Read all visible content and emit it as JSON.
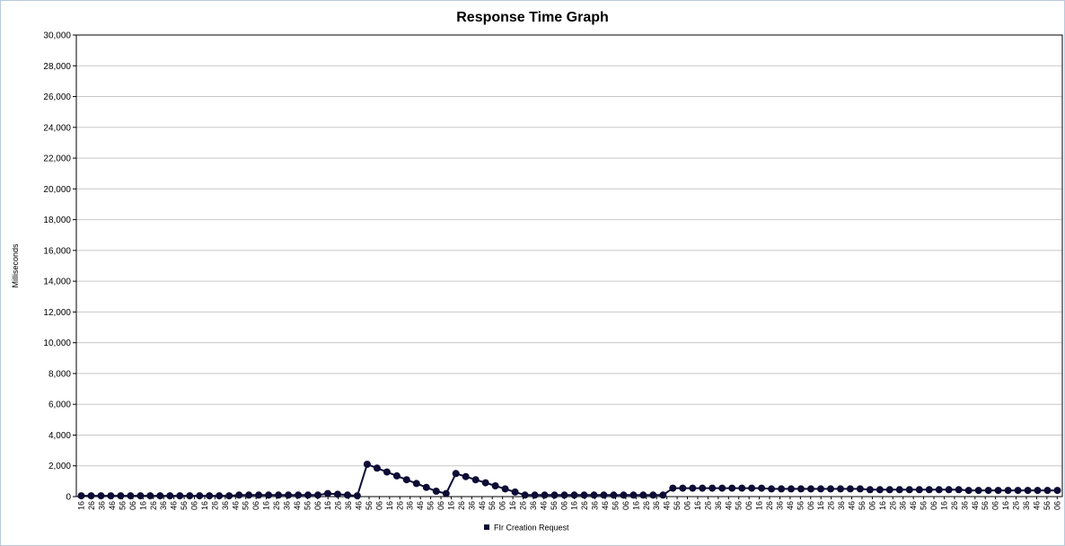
{
  "chart_data": {
    "type": "line",
    "title": "Response Time Graph",
    "ylabel": "Milliseconds",
    "xlabel": "",
    "ylim": [
      0,
      30000
    ],
    "y_ticks": [
      "0",
      "2,000",
      "4,000",
      "6,000",
      "8,000",
      "10,000",
      "12,000",
      "14,000",
      "16,000",
      "18,000",
      "20,000",
      "22,000",
      "24,000",
      "26,000",
      "28,000",
      "30,000"
    ],
    "x_tick_labels": [
      "16",
      "26",
      "36",
      "46",
      "56",
      "06",
      "16",
      "26",
      "36",
      "46",
      "56",
      "06",
      "16",
      "26",
      "36",
      "46",
      "56",
      "06",
      "16",
      "26",
      "36",
      "46",
      "56",
      "06",
      "16",
      "26",
      "36",
      "46",
      "56",
      "06",
      "16",
      "26",
      "36",
      "46",
      "56",
      "06",
      "16",
      "26",
      "36",
      "46",
      "56",
      "06",
      "16",
      "26",
      "36",
      "46",
      "56",
      "06",
      "16",
      "26",
      "36",
      "46",
      "56",
      "06",
      "16",
      "26",
      "36",
      "46",
      "56",
      "06",
      "16",
      "26",
      "36",
      "46",
      "56",
      "06",
      "16",
      "26",
      "36",
      "46",
      "56",
      "06",
      "16",
      "26",
      "36",
      "46",
      "56",
      "06",
      "16",
      "26",
      "36",
      "46",
      "56",
      "06",
      "16",
      "26",
      "36",
      "46",
      "56",
      "06",
      "16",
      "26",
      "36",
      "46",
      "56",
      "06"
    ],
    "grid": true,
    "legend_position": "bottom",
    "colors": {
      "series": "#0c0c35",
      "grid": "#c8c8c8",
      "axis": "#000000"
    },
    "series": [
      {
        "name": "FIr Creation Request",
        "x": [
          0,
          1,
          2,
          3,
          4,
          5,
          6,
          7,
          8,
          9,
          10,
          11,
          12,
          13,
          14,
          15,
          16,
          17,
          18,
          19,
          20,
          21,
          22,
          23,
          24,
          25,
          26,
          27,
          28,
          29,
          30,
          31,
          32,
          33,
          34,
          35,
          36,
          37,
          38,
          39,
          40,
          41,
          42,
          43,
          44,
          45,
          46,
          47,
          48,
          49,
          50,
          51,
          52,
          53,
          54,
          55,
          56,
          57,
          58,
          59,
          60,
          61,
          62,
          63,
          64,
          65,
          66,
          67,
          68,
          69,
          70,
          71,
          72,
          73,
          74,
          75,
          76,
          77,
          78,
          79,
          80,
          81,
          82,
          83,
          84,
          85,
          86,
          87,
          88,
          89,
          90,
          91,
          92,
          93,
          94,
          95,
          96,
          97,
          98,
          99
        ],
        "values": [
          50,
          50,
          50,
          50,
          50,
          50,
          50,
          50,
          50,
          50,
          50,
          50,
          50,
          50,
          50,
          50,
          100,
          100,
          100,
          100,
          100,
          100,
          100,
          100,
          100,
          200,
          150,
          100,
          50,
          2100,
          1850,
          1600,
          1350,
          1100,
          850,
          600,
          350,
          200,
          1500,
          1300,
          1100,
          900,
          700,
          500,
          300,
          100,
          100,
          100,
          100,
          100,
          100,
          100,
          100,
          100,
          100,
          100,
          100,
          100,
          100,
          100,
          550,
          550,
          550,
          550,
          550,
          550,
          550,
          550,
          550,
          550,
          500,
          500,
          500,
          500,
          500,
          500,
          500,
          500,
          500,
          500,
          450,
          450,
          450,
          450,
          450,
          450,
          450,
          450,
          450,
          450,
          400,
          400,
          400,
          400,
          400,
          400,
          400,
          400,
          400,
          400
        ]
      }
    ]
  },
  "legend": {
    "label": "FIr Creation Request"
  }
}
